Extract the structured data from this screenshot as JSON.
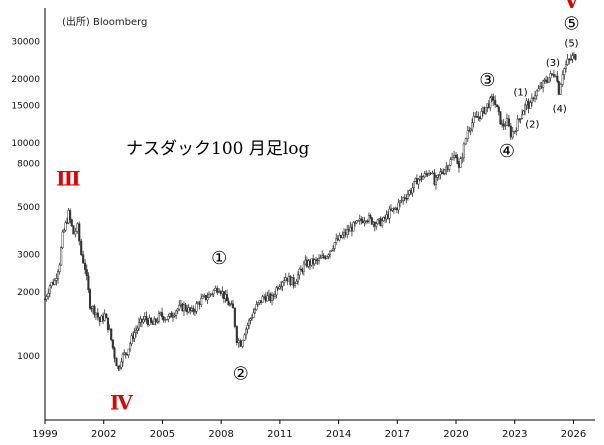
{
  "source": "(出所) Bloomberg",
  "chart_data": {
    "type": "candlestick",
    "title": "ナスダック100 月足log",
    "yscale": "log",
    "ylim": [
      500,
      43000
    ],
    "xlim": [
      1999.0,
      2027.1
    ],
    "yticks": [
      1000,
      2000,
      3000,
      5000,
      8000,
      10000,
      15000,
      20000,
      30000
    ],
    "ytick_labels": [
      "1000",
      "2000",
      "3000",
      "5000",
      "8000",
      "10000",
      "15000",
      "20000",
      "30000"
    ],
    "xticks": [
      1999,
      2002,
      2005,
      2008,
      2011,
      2014,
      2017,
      2020,
      2023,
      2026
    ],
    "grid": false,
    "series": [
      {
        "values": [
          [
            1999.0,
            1850
          ],
          [
            1999.25,
            2150
          ],
          [
            1999.5,
            2250
          ],
          [
            1999.75,
            2750
          ],
          [
            1999.9,
            3650
          ],
          [
            2000.2,
            4650
          ],
          [
            2000.45,
            3750
          ],
          [
            2000.65,
            4000
          ],
          [
            2000.85,
            3000
          ],
          [
            2001.05,
            2600
          ],
          [
            2001.3,
            1750
          ],
          [
            2001.6,
            1600
          ],
          [
            2001.8,
            1450
          ],
          [
            2002.05,
            1550
          ],
          [
            2002.3,
            1300
          ],
          [
            2002.55,
            1000
          ],
          [
            2002.75,
            860
          ],
          [
            2002.9,
            980
          ],
          [
            2003.2,
            1050
          ],
          [
            2003.5,
            1250
          ],
          [
            2003.8,
            1400
          ],
          [
            2004.1,
            1500
          ],
          [
            2004.5,
            1400
          ],
          [
            2004.9,
            1550
          ],
          [
            2005.3,
            1500
          ],
          [
            2005.7,
            1650
          ],
          [
            2006.1,
            1700
          ],
          [
            2006.5,
            1600
          ],
          [
            2006.9,
            1800
          ],
          [
            2007.3,
            1900
          ],
          [
            2007.7,
            2050
          ],
          [
            2007.9,
            2100
          ],
          [
            2008.3,
            1800
          ],
          [
            2008.6,
            1650
          ],
          [
            2008.8,
            1200
          ],
          [
            2009.0,
            1150
          ],
          [
            2009.2,
            1300
          ],
          [
            2009.5,
            1500
          ],
          [
            2009.8,
            1700
          ],
          [
            2010.2,
            1900
          ],
          [
            2010.6,
            1850
          ],
          [
            2010.9,
            2150
          ],
          [
            2011.3,
            2350
          ],
          [
            2011.7,
            2200
          ],
          [
            2012.0,
            2450
          ],
          [
            2012.3,
            2700
          ],
          [
            2012.7,
            2750
          ],
          [
            2013.0,
            2800
          ],
          [
            2013.4,
            3000
          ],
          [
            2013.8,
            3400
          ],
          [
            2014.2,
            3650
          ],
          [
            2014.6,
            3950
          ],
          [
            2015.0,
            4200
          ],
          [
            2015.4,
            4500
          ],
          [
            2015.7,
            4300
          ],
          [
            2016.0,
            4200
          ],
          [
            2016.3,
            4300
          ],
          [
            2016.6,
            4700
          ],
          [
            2016.9,
            4900
          ],
          [
            2017.3,
            5500
          ],
          [
            2017.7,
            6000
          ],
          [
            2018.0,
            6700
          ],
          [
            2018.4,
            7000
          ],
          [
            2018.7,
            7500
          ],
          [
            2018.9,
            6400
          ],
          [
            2019.2,
            7200
          ],
          [
            2019.5,
            7700
          ],
          [
            2019.8,
            8400
          ],
          [
            2020.0,
            8900
          ],
          [
            2020.15,
            7500
          ],
          [
            2020.4,
            9600
          ],
          [
            2020.6,
            11500
          ],
          [
            2020.9,
            12800
          ],
          [
            2021.3,
            13700
          ],
          [
            2021.6,
            15000
          ],
          [
            2021.9,
            16200
          ],
          [
            2022.1,
            14300
          ],
          [
            2022.35,
            12000
          ],
          [
            2022.6,
            12500
          ],
          [
            2022.8,
            11000
          ],
          [
            2023.0,
            11500
          ],
          [
            2023.3,
            13500
          ],
          [
            2023.6,
            15300
          ],
          [
            2023.8,
            14800
          ],
          [
            2023.95,
            16700
          ],
          [
            2024.3,
            18000
          ],
          [
            2024.6,
            19700
          ],
          [
            2024.9,
            20800
          ],
          [
            2025.1,
            21500
          ],
          [
            2025.25,
            17500
          ],
          [
            2025.45,
            21500
          ],
          [
            2025.7,
            24000
          ],
          [
            2025.95,
            25200
          ],
          [
            2026.1,
            25600
          ]
        ]
      }
    ],
    "annotations": [
      {
        "text": "Ⅲ",
        "x": 2000.2,
        "y": 6300,
        "color": "#e00000"
      },
      {
        "text": "Ⅳ",
        "x": 2002.9,
        "y": 560,
        "color": "#e00000"
      },
      {
        "text": "Ⅴ",
        "x": 2025.9,
        "y": 43000,
        "color": "#e00000"
      },
      {
        "text": "①",
        "x": 2007.9,
        "y": 2700,
        "color": "#000000"
      },
      {
        "text": "②",
        "x": 2009.0,
        "y": 775,
        "color": "#000000"
      },
      {
        "text": "③",
        "x": 2021.6,
        "y": 18500,
        "color": "#000000"
      },
      {
        "text": "④",
        "x": 2022.6,
        "y": 8600,
        "color": "#000000"
      },
      {
        "text": "⑤",
        "x": 2025.9,
        "y": 34000,
        "color": "#000000"
      },
      {
        "text": "(1)",
        "x": 2023.3,
        "y": 16700,
        "color": "#000000"
      },
      {
        "text": "(2)",
        "x": 2023.9,
        "y": 11800,
        "color": "#000000"
      },
      {
        "text": "(3)",
        "x": 2024.95,
        "y": 23000,
        "color": "#000000"
      },
      {
        "text": "(4)",
        "x": 2025.3,
        "y": 14000,
        "color": "#000000"
      },
      {
        "text": "(5)",
        "x": 2025.9,
        "y": 28300,
        "color": "#000000"
      }
    ]
  }
}
